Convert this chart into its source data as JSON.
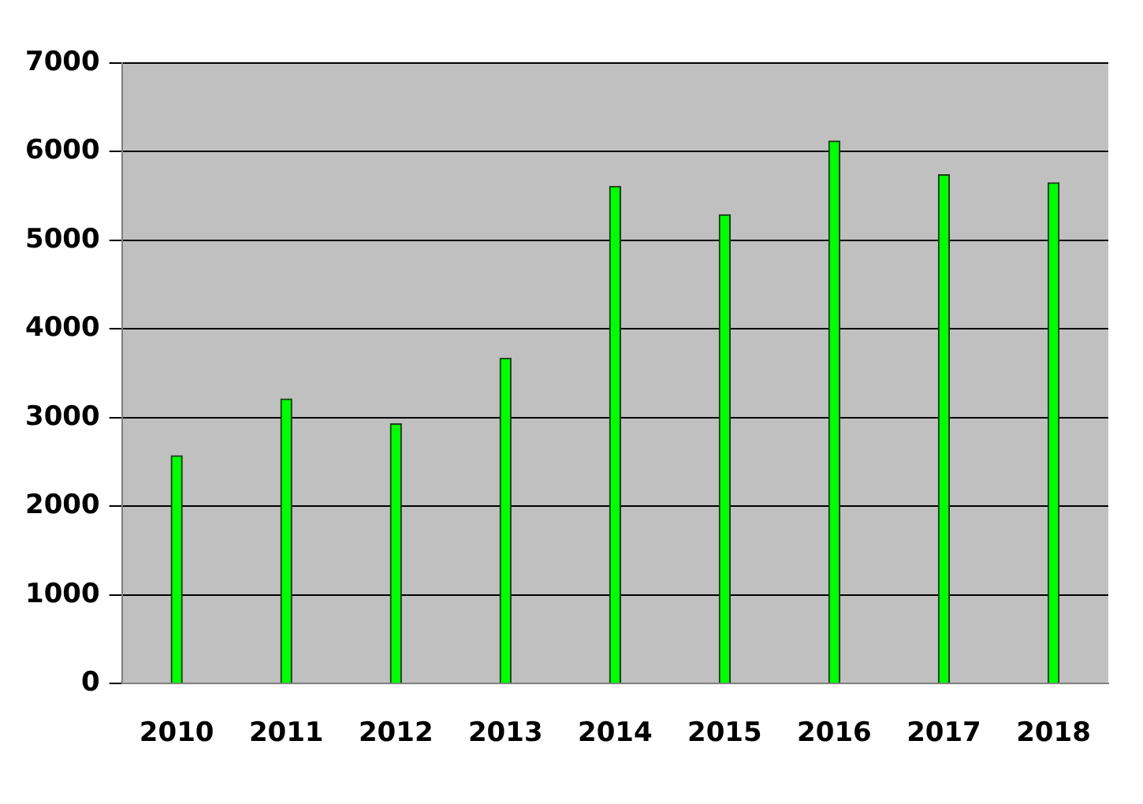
{
  "chart_data": {
    "type": "bar",
    "categories": [
      "2010",
      "2011",
      "2012",
      "2013",
      "2014",
      "2015",
      "2016",
      "2017",
      "2018"
    ],
    "values": [
      2570,
      3210,
      2930,
      3670,
      5610,
      5290,
      6120,
      5740,
      5650
    ],
    "color": "#00ff00",
    "ylim": [
      0,
      7000
    ],
    "yticks": [
      0,
      1000,
      2000,
      3000,
      4000,
      5000,
      6000,
      7000
    ],
    "grid": "y",
    "legend": false
  }
}
